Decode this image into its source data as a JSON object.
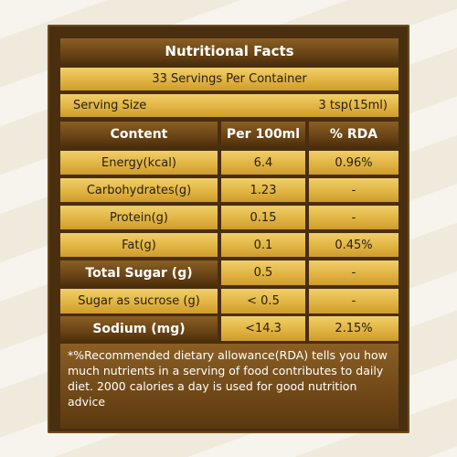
{
  "title": "Nutritional Facts",
  "servings": "33 Servings Per Container",
  "serving_size": {
    "label": "Serving Size",
    "value": "3 tsp(15ml)"
  },
  "headers": {
    "content": "Content",
    "per100": "Per 100ml",
    "rda": "% RDA"
  },
  "rows": [
    {
      "content": "Energy(kcal)",
      "per100": "6.4",
      "rda": "0.96%"
    },
    {
      "content": "Carbohydrates(g)",
      "per100": "1.23",
      "rda": "-"
    },
    {
      "content": "Protein(g)",
      "per100": "0.15",
      "rda": "-"
    },
    {
      "content": "Fat(g)",
      "per100": "0.1",
      "rda": "0.45%"
    },
    {
      "content": "Total Sugar (g)",
      "per100": "0.5",
      "rda": "-"
    },
    {
      "content": "Sugar as sucrose (g)",
      "per100": "< 0.5",
      "rda": "-"
    },
    {
      "content": "Sodium (mg)",
      "per100": "<14.3",
      "rda": "2.15%"
    }
  ],
  "footnote": "*%Recommended dietary allowance(RDA) tells you how much nutrients in a serving of food contributes to daily diet. 2000 calories a day is used for good nutrition advice"
}
